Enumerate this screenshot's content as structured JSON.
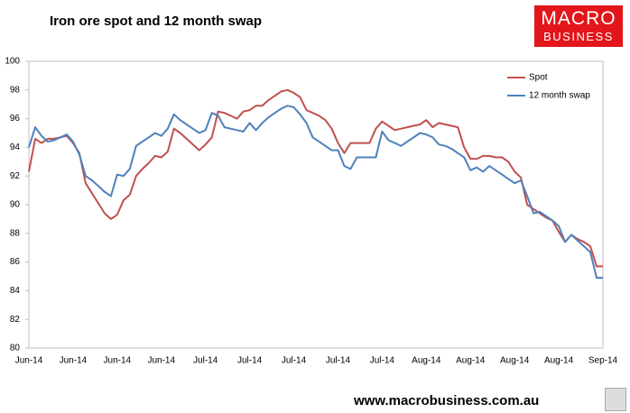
{
  "chart_data": {
    "type": "line",
    "title": "Iron ore spot and 12 month swap",
    "categories": [
      "Jun-14",
      null,
      null,
      null,
      null,
      null,
      null,
      "Jun-14",
      null,
      null,
      null,
      null,
      null,
      null,
      "Jun-14",
      null,
      null,
      null,
      null,
      null,
      null,
      "Jun-14",
      null,
      null,
      null,
      null,
      null,
      null,
      "Jul-14",
      null,
      null,
      null,
      null,
      null,
      null,
      "Jul-14",
      null,
      null,
      null,
      null,
      null,
      null,
      "Jul-14",
      null,
      null,
      null,
      null,
      null,
      null,
      "Jul-14",
      null,
      null,
      null,
      null,
      null,
      null,
      "Jul-14",
      null,
      null,
      null,
      null,
      null,
      null,
      "Aug-14",
      null,
      null,
      null,
      null,
      null,
      null,
      "Aug-14",
      null,
      null,
      null,
      null,
      null,
      null,
      "Aug-14",
      null,
      null,
      null,
      null,
      null,
      null,
      "Aug-14",
      null,
      null,
      null,
      null,
      null,
      null,
      "Sep-14"
    ],
    "series": [
      {
        "name": "Spot",
        "color": "#c0504d",
        "values": [
          92.3,
          94.6,
          94.3,
          94.6,
          94.6,
          94.7,
          94.8,
          94.3,
          93.6,
          91.5,
          90.8,
          90.1,
          89.4,
          89.0,
          89.3,
          90.3,
          90.7,
          92.0,
          92.5,
          92.9,
          93.4,
          93.3,
          93.7,
          95.3,
          95.0,
          94.6,
          94.2,
          93.8,
          94.2,
          94.7,
          96.5,
          96.4,
          96.2,
          96.0,
          96.5,
          96.6,
          96.9,
          96.9,
          97.3,
          97.6,
          97.9,
          98.0,
          97.8,
          97.5,
          96.6,
          96.4,
          96.2,
          95.9,
          95.3,
          94.3,
          93.6,
          94.3,
          94.3,
          94.3,
          94.3,
          95.3,
          95.8,
          95.5,
          95.2,
          95.3,
          95.4,
          95.5,
          95.6,
          95.9,
          95.4,
          95.7,
          95.6,
          95.5,
          95.4,
          94.0,
          93.2,
          93.2,
          93.4,
          93.4,
          93.3,
          93.3,
          93.0,
          92.3,
          91.9,
          90.0,
          89.7,
          89.4,
          89.1,
          88.9,
          88.1,
          87.4,
          87.9,
          87.6,
          87.4,
          87.1,
          85.7,
          85.7
        ]
      },
      {
        "name": "12 month swap",
        "color": "#4f81bd",
        "values": [
          94.0,
          95.4,
          94.8,
          94.4,
          94.5,
          94.7,
          94.9,
          94.4,
          93.5,
          92.0,
          91.7,
          91.3,
          90.9,
          90.6,
          92.1,
          92.0,
          92.5,
          94.1,
          94.4,
          94.7,
          95.0,
          94.8,
          95.3,
          96.3,
          95.9,
          95.6,
          95.3,
          95.0,
          95.2,
          96.4,
          96.2,
          95.4,
          95.3,
          95.2,
          95.1,
          95.7,
          95.2,
          95.7,
          96.1,
          96.4,
          96.7,
          96.9,
          96.8,
          96.3,
          95.7,
          94.7,
          94.4,
          94.1,
          93.8,
          93.8,
          92.7,
          92.5,
          93.3,
          93.3,
          93.3,
          93.3,
          95.1,
          94.5,
          94.3,
          94.1,
          94.4,
          94.7,
          95.0,
          94.9,
          94.7,
          94.2,
          94.1,
          93.9,
          93.6,
          93.3,
          92.4,
          92.6,
          92.3,
          92.7,
          92.4,
          92.1,
          91.8,
          91.5,
          91.7,
          90.6,
          89.4,
          89.5,
          89.2,
          88.9,
          88.5,
          87.4,
          87.9,
          87.5,
          87.1,
          86.7,
          84.9,
          84.9
        ]
      }
    ],
    "ylim": [
      80,
      100
    ],
    "yticks": [
      80,
      82,
      84,
      86,
      88,
      90,
      92,
      94,
      96,
      98,
      100
    ],
    "grid": false,
    "legend": "top-right"
  },
  "branding": {
    "logo_top": "MACRO",
    "logo_bottom": "BUSINESS",
    "url": "www.macrobusiness.com.au"
  }
}
